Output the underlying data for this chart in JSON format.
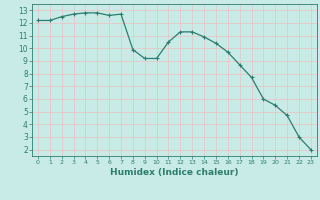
{
  "x": [
    0,
    1,
    2,
    3,
    4,
    5,
    6,
    7,
    8,
    9,
    10,
    11,
    12,
    13,
    14,
    15,
    16,
    17,
    18,
    19,
    20,
    21,
    22,
    23
  ],
  "y": [
    12.2,
    12.2,
    12.5,
    12.7,
    12.8,
    12.8,
    12.6,
    12.7,
    9.9,
    9.2,
    9.2,
    10.5,
    11.3,
    11.3,
    10.9,
    10.4,
    9.7,
    8.7,
    7.7,
    6.0,
    5.5,
    4.7,
    3.0,
    2.0
  ],
  "xlabel": "Humidex (Indice chaleur)",
  "line_color": "#2d7d6e",
  "marker": "+",
  "bg_color": "#c8ebe8",
  "grid_color": "#e8c8c8",
  "axis_color": "#2d7d6e",
  "tick_color": "#2d7d6e",
  "label_color": "#2d7d6e",
  "xlim": [
    -0.5,
    23.5
  ],
  "ylim": [
    1.5,
    13.5
  ],
  "yticks": [
    2,
    3,
    4,
    5,
    6,
    7,
    8,
    9,
    10,
    11,
    12,
    13
  ],
  "xticks": [
    0,
    1,
    2,
    3,
    4,
    5,
    6,
    7,
    8,
    9,
    10,
    11,
    12,
    13,
    14,
    15,
    16,
    17,
    18,
    19,
    20,
    21,
    22,
    23
  ]
}
